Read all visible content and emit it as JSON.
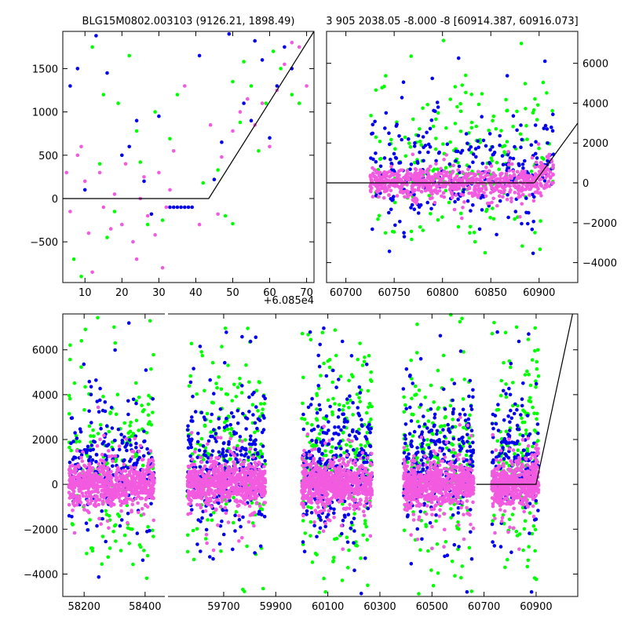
{
  "colors": {
    "green": "#00ff00",
    "blue": "#0000ee",
    "pink": "#f25ae0",
    "model": "#000000"
  },
  "chart_data": [
    {
      "type": "scatter",
      "title": "BLG15M0802.003103 (9126.21, 1898.49)",
      "xlim": [
        4,
        72
      ],
      "ylim": [
        -970,
        1930
      ],
      "xticks": [
        10,
        20,
        30,
        40,
        50,
        60,
        70
      ],
      "xtick_labels": [
        "10",
        "20",
        "30",
        "40",
        "50",
        "60",
        "70"
      ],
      "yticks": [
        -500,
        0,
        500,
        1000,
        1500
      ],
      "ytick_labels": [
        "−500",
        "0",
        "500",
        "1000",
        "1500"
      ],
      "x_offset_label": "+6.085e4",
      "grid": false,
      "model_line": [
        [
          4,
          0
        ],
        [
          43.5,
          0
        ],
        [
          72,
          1930
        ]
      ],
      "series": [
        {
          "color": "green",
          "points": [
            [
              7,
              -700
            ],
            [
              9,
              -900
            ],
            [
              12,
              1750
            ],
            [
              15,
              1200
            ],
            [
              16,
              -450
            ],
            [
              19,
              1100
            ],
            [
              22,
              1650
            ],
            [
              24,
              780
            ],
            [
              27,
              -300
            ],
            [
              31,
              -250
            ],
            [
              35,
              1200
            ],
            [
              46,
              330
            ],
            [
              48,
              -200
            ],
            [
              50,
              -290
            ],
            [
              52,
              880
            ],
            [
              55,
              1300
            ],
            [
              57,
              550
            ],
            [
              59,
              1100
            ],
            [
              61,
              1700
            ],
            [
              63,
              1500
            ],
            [
              66,
              1200
            ],
            [
              68,
              1100
            ],
            [
              50,
              1350
            ],
            [
              42,
              180
            ],
            [
              25,
              420
            ],
            [
              33,
              690
            ],
            [
              14,
              400
            ],
            [
              18,
              -150
            ],
            [
              29,
              1000
            ],
            [
              53,
              1580
            ]
          ]
        },
        {
          "color": "blue",
          "points": [
            [
              6,
              1300
            ],
            [
              8,
              1500
            ],
            [
              13,
              1880
            ],
            [
              16,
              1450
            ],
            [
              22,
              600
            ],
            [
              24,
              900
            ],
            [
              28,
              -180
            ],
            [
              30,
              950
            ],
            [
              33,
              -100
            ],
            [
              34,
              -100
            ],
            [
              35,
              -100
            ],
            [
              36,
              -100
            ],
            [
              37,
              -100
            ],
            [
              38,
              -100
            ],
            [
              39,
              -100
            ],
            [
              41,
              1650
            ],
            [
              47,
              650
            ],
            [
              49,
              1900
            ],
            [
              53,
              1100
            ],
            [
              55,
              900
            ],
            [
              58,
              1600
            ],
            [
              60,
              700
            ],
            [
              62,
              1300
            ],
            [
              64,
              1750
            ],
            [
              66,
              1500
            ],
            [
              56,
              1820
            ],
            [
              45,
              220
            ],
            [
              20,
              500
            ],
            [
              10,
              100
            ],
            [
              26,
              200
            ]
          ]
        },
        {
          "color": "pink",
          "points": [
            [
              5,
              300
            ],
            [
              6,
              -150
            ],
            [
              8,
              500
            ],
            [
              10,
              200
            ],
            [
              11,
              -400
            ],
            [
              12,
              -850
            ],
            [
              14,
              300
            ],
            [
              17,
              -350
            ],
            [
              18,
              50
            ],
            [
              20,
              -300
            ],
            [
              21,
              400
            ],
            [
              23,
              -500
            ],
            [
              25,
              0
            ],
            [
              26,
              250
            ],
            [
              27,
              -200
            ],
            [
              29,
              -420
            ],
            [
              30,
              300
            ],
            [
              32,
              -100
            ],
            [
              33,
              100
            ],
            [
              34,
              550
            ],
            [
              37,
              1300
            ],
            [
              41,
              -300
            ],
            [
              44,
              850
            ],
            [
              46,
              -180
            ],
            [
              47,
              480
            ],
            [
              50,
              780
            ],
            [
              52,
              1000
            ],
            [
              54,
              1150
            ],
            [
              56,
              850
            ],
            [
              58,
              1100
            ],
            [
              60,
              600
            ],
            [
              62,
              1250
            ],
            [
              64,
              1550
            ],
            [
              66,
              1800
            ],
            [
              68,
              1750
            ],
            [
              70,
              1300
            ],
            [
              24,
              -700
            ],
            [
              15,
              -100
            ],
            [
              9,
              600
            ],
            [
              31,
              -800
            ]
          ]
        }
      ]
    },
    {
      "type": "scatter",
      "title": "3 905 2038.05 -8.000 -8 [60914.387, 60916.073]",
      "xlim": [
        60680,
        60940
      ],
      "ylim": [
        -5000,
        7600
      ],
      "xticks": [
        60700,
        60750,
        60800,
        60850,
        60900
      ],
      "xtick_labels": [
        "60700",
        "60750",
        "60800",
        "60850",
        "60900"
      ],
      "yticks": [
        -4000,
        -2000,
        0,
        2000,
        4000,
        6000
      ],
      "ytick_labels": [
        "−4000",
        "−2000",
        "0",
        "2000",
        "4000",
        "6000"
      ],
      "yaxis_side": "right",
      "grid": false,
      "model_line": [
        [
          60680,
          0
        ],
        [
          60895,
          0
        ],
        [
          60940,
          3000
        ]
      ],
      "band": {
        "x0": 60725,
        "x1": 60915,
        "center": 0,
        "pink_spread": 700,
        "blue_spread": 1600,
        "green_spread": 2400,
        "counts": {
          "green": 220,
          "blue": 260,
          "pink": 700
        }
      }
    },
    {
      "type": "scatter",
      "subtype": "broken-axis",
      "xlim": [
        58130,
        61060
      ],
      "ylim": [
        -5000,
        7600
      ],
      "xticks": [
        58200,
        58400,
        59700,
        59900,
        60100,
        60300,
        60500,
        60700,
        60900
      ],
      "xtick_labels": [
        "58200",
        "58400",
        "59700",
        "59900",
        "60100",
        "60300",
        "60500",
        "60700",
        "60900"
      ],
      "yticks": [
        -4000,
        -2000,
        0,
        2000,
        4000,
        6000
      ],
      "ytick_labels": [
        "−4000",
        "−2000",
        "0",
        "2000",
        "4000",
        "6000"
      ],
      "axis_break_near": 58470,
      "grid": false,
      "model_line": [
        [
          60670,
          0
        ],
        [
          60900,
          0
        ],
        [
          61040,
          7600
        ]
      ],
      "seasons": [
        {
          "x0": 58150,
          "x1": 58430,
          "counts": {
            "green": 200,
            "blue": 230,
            "pink": 700
          }
        },
        {
          "x0": 59560,
          "x1": 59860,
          "counts": {
            "green": 200,
            "blue": 280,
            "pink": 720
          }
        },
        {
          "x0": 60000,
          "x1": 60270,
          "counts": {
            "green": 240,
            "blue": 300,
            "pink": 720
          }
        },
        {
          "x0": 60390,
          "x1": 60660,
          "counts": {
            "green": 220,
            "blue": 300,
            "pink": 720
          }
        },
        {
          "x0": 60730,
          "x1": 60910,
          "counts": {
            "green": 160,
            "blue": 180,
            "pink": 520
          }
        }
      ]
    }
  ]
}
